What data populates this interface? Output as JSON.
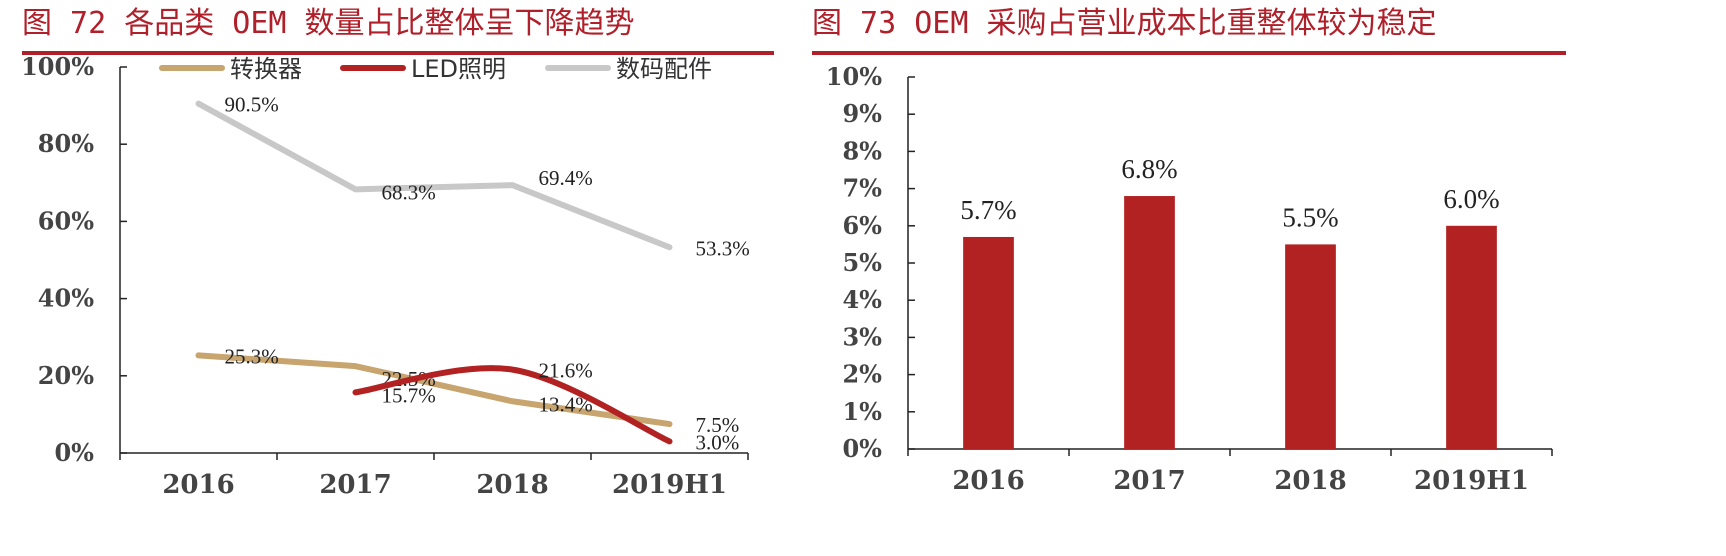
{
  "chart_data": [
    {
      "type": "line",
      "title": "图 72 各品类 OEM 数量占比整体呈下降趋势",
      "categories": [
        "2016",
        "2017",
        "2018",
        "2019H1"
      ],
      "ylim": [
        0,
        100
      ],
      "yticks": [
        "0%",
        "20%",
        "40%",
        "60%",
        "80%",
        "100%"
      ],
      "legend_position": "top",
      "series": [
        {
          "name": "转换器",
          "color": "#c8a46e",
          "values": [
            25.3,
            22.5,
            13.4,
            7.5
          ],
          "labels": [
            "25.3%",
            "22.5%",
            "13.4%",
            "7.5%"
          ]
        },
        {
          "name": "LED照明",
          "color": "#b22222",
          "values": [
            null,
            15.7,
            21.6,
            3.0
          ],
          "labels": [
            "",
            "15.7%",
            "21.6%",
            "3.0%"
          ]
        },
        {
          "name": "数码配件",
          "color": "#c8c8c8",
          "values": [
            90.5,
            68.3,
            69.4,
            53.3
          ],
          "labels": [
            "90.5%",
            "68.3%",
            "69.4%",
            "53.3%"
          ]
        }
      ]
    },
    {
      "type": "bar",
      "title": "图 73 OEM 采购占营业成本比重整体较为稳定",
      "categories": [
        "2016",
        "2017",
        "2018",
        "2019H1"
      ],
      "values": [
        5.7,
        6.8,
        5.5,
        6.0
      ],
      "labels": [
        "5.7%",
        "6.8%",
        "5.5%",
        "6.0%"
      ],
      "ylim": [
        0,
        10
      ],
      "yticks": [
        "0%",
        "1%",
        "2%",
        "3%",
        "4%",
        "5%",
        "6%",
        "7%",
        "8%",
        "9%",
        "10%"
      ],
      "color": "#b22222"
    }
  ]
}
